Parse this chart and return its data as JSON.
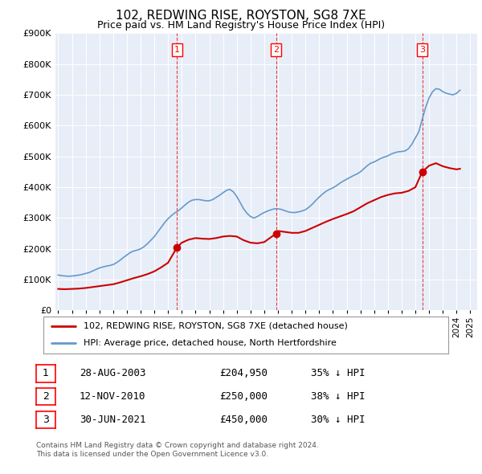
{
  "title": "102, REDWING RISE, ROYSTON, SG8 7XE",
  "subtitle": "Price paid vs. HM Land Registry's House Price Index (HPI)",
  "ylim": [
    0,
    900000
  ],
  "yticks": [
    0,
    100000,
    200000,
    300000,
    400000,
    500000,
    600000,
    700000,
    800000,
    900000
  ],
  "xlim": [
    1994.8,
    2025.5
  ],
  "hpi_color": "#6699cc",
  "price_color": "#cc0000",
  "vline_color": "#dd2222",
  "background_color": "#e8eef8",
  "legend_label_price": "102, REDWING RISE, ROYSTON, SG8 7XE (detached house)",
  "legend_label_hpi": "HPI: Average price, detached house, North Hertfordshire",
  "transactions": [
    {
      "num": 1,
      "date": "28-AUG-2003",
      "price": 204950,
      "price_str": "£204,950",
      "pct": "35%",
      "dir": "↓",
      "year": 2003.65
    },
    {
      "num": 2,
      "date": "12-NOV-2010",
      "price": 250000,
      "price_str": "£250,000",
      "pct": "38%",
      "dir": "↓",
      "year": 2010.87
    },
    {
      "num": 3,
      "date": "30-JUN-2021",
      "price": 450000,
      "price_str": "£450,000",
      "pct": "30%",
      "dir": "↓",
      "year": 2021.5
    }
  ],
  "footnote1": "Contains HM Land Registry data © Crown copyright and database right 2024.",
  "footnote2": "This data is licensed under the Open Government Licence v3.0.",
  "hpi_data": {
    "years": [
      1995.0,
      1995.25,
      1995.5,
      1995.75,
      1996.0,
      1996.25,
      1996.5,
      1996.75,
      1997.0,
      1997.25,
      1997.5,
      1997.75,
      1998.0,
      1998.25,
      1998.5,
      1998.75,
      1999.0,
      1999.25,
      1999.5,
      1999.75,
      2000.0,
      2000.25,
      2000.5,
      2000.75,
      2001.0,
      2001.25,
      2001.5,
      2001.75,
      2002.0,
      2002.25,
      2002.5,
      2002.75,
      2003.0,
      2003.25,
      2003.5,
      2003.75,
      2004.0,
      2004.25,
      2004.5,
      2004.75,
      2005.0,
      2005.25,
      2005.5,
      2005.75,
      2006.0,
      2006.25,
      2006.5,
      2006.75,
      2007.0,
      2007.25,
      2007.5,
      2007.75,
      2008.0,
      2008.25,
      2008.5,
      2008.75,
      2009.0,
      2009.25,
      2009.5,
      2009.75,
      2010.0,
      2010.25,
      2010.5,
      2010.75,
      2011.0,
      2011.25,
      2011.5,
      2011.75,
      2012.0,
      2012.25,
      2012.5,
      2012.75,
      2013.0,
      2013.25,
      2013.5,
      2013.75,
      2014.0,
      2014.25,
      2014.5,
      2014.75,
      2015.0,
      2015.25,
      2015.5,
      2015.75,
      2016.0,
      2016.25,
      2016.5,
      2016.75,
      2017.0,
      2017.25,
      2017.5,
      2017.75,
      2018.0,
      2018.25,
      2018.5,
      2018.75,
      2019.0,
      2019.25,
      2019.5,
      2019.75,
      2020.0,
      2020.25,
      2020.5,
      2020.75,
      2021.0,
      2021.25,
      2021.5,
      2021.75,
      2022.0,
      2022.25,
      2022.5,
      2022.75,
      2023.0,
      2023.25,
      2023.5,
      2023.75,
      2024.0,
      2024.25
    ],
    "values": [
      115000,
      113000,
      112000,
      111000,
      112000,
      113000,
      115000,
      117000,
      120000,
      123000,
      128000,
      133000,
      138000,
      141000,
      144000,
      146000,
      149000,
      155000,
      163000,
      172000,
      180000,
      188000,
      193000,
      196000,
      200000,
      207000,
      217000,
      228000,
      240000,
      255000,
      270000,
      285000,
      298000,
      308000,
      317000,
      324000,
      333000,
      343000,
      352000,
      358000,
      360000,
      360000,
      358000,
      356000,
      356000,
      360000,
      367000,
      374000,
      382000,
      390000,
      393000,
      385000,
      370000,
      350000,
      330000,
      315000,
      305000,
      300000,
      305000,
      312000,
      318000,
      323000,
      327000,
      330000,
      330000,
      328000,
      324000,
      320000,
      318000,
      318000,
      320000,
      323000,
      327000,
      335000,
      345000,
      357000,
      368000,
      378000,
      387000,
      393000,
      398000,
      405000,
      413000,
      420000,
      426000,
      432000,
      438000,
      443000,
      450000,
      460000,
      470000,
      478000,
      482000,
      488000,
      494000,
      498000,
      502000,
      508000,
      512000,
      515000,
      516000,
      518000,
      525000,
      540000,
      560000,
      580000,
      620000,
      660000,
      690000,
      710000,
      720000,
      718000,
      710000,
      705000,
      702000,
      700000,
      705000,
      715000
    ]
  },
  "price_data": {
    "years": [
      1995.0,
      1995.5,
      1996.0,
      1996.5,
      1997.0,
      1997.5,
      1998.0,
      1998.5,
      1999.0,
      1999.5,
      2000.0,
      2000.5,
      2001.0,
      2001.5,
      2002.0,
      2002.5,
      2003.0,
      2003.65,
      2004.0,
      2004.5,
      2005.0,
      2005.5,
      2006.0,
      2006.5,
      2007.0,
      2007.5,
      2008.0,
      2008.5,
      2009.0,
      2009.5,
      2010.0,
      2010.87,
      2011.0,
      2011.5,
      2012.0,
      2012.5,
      2013.0,
      2013.5,
      2014.0,
      2014.5,
      2015.0,
      2015.5,
      2016.0,
      2016.5,
      2017.0,
      2017.5,
      2018.0,
      2018.5,
      2019.0,
      2019.5,
      2020.0,
      2020.5,
      2021.0,
      2021.5,
      2022.0,
      2022.5,
      2023.0,
      2023.5,
      2024.0,
      2024.25
    ],
    "values": [
      70000,
      69000,
      70000,
      71000,
      73000,
      76000,
      79000,
      82000,
      85000,
      91000,
      98000,
      105000,
      111000,
      118000,
      127000,
      140000,
      155000,
      204950,
      220000,
      230000,
      235000,
      233000,
      232000,
      235000,
      240000,
      242000,
      240000,
      228000,
      220000,
      218000,
      222000,
      250000,
      258000,
      255000,
      252000,
      252000,
      258000,
      268000,
      278000,
      288000,
      297000,
      305000,
      313000,
      322000,
      335000,
      348000,
      358000,
      368000,
      375000,
      380000,
      382000,
      388000,
      400000,
      450000,
      470000,
      478000,
      468000,
      462000,
      458000,
      460000
    ]
  }
}
